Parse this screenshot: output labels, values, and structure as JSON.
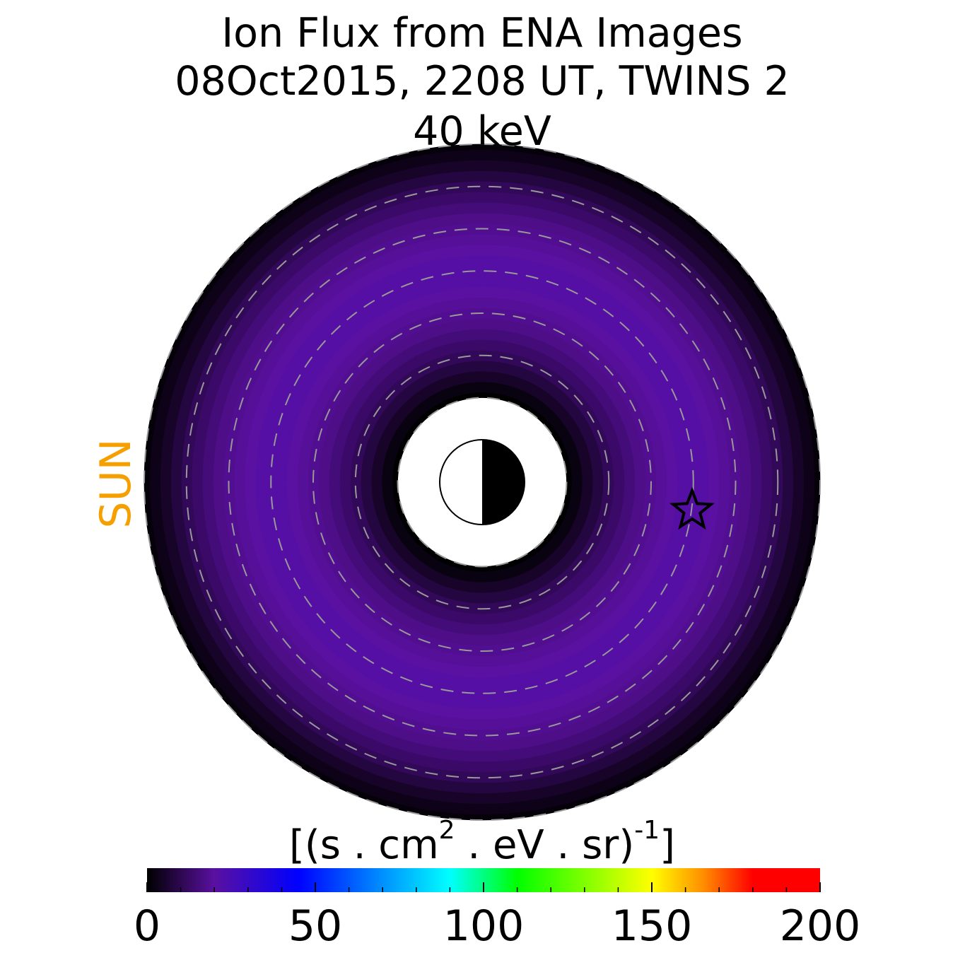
{
  "chart_data": {
    "type": "polar-map",
    "title": [
      "Ion Flux from  ENA Images",
      "08Oct2015, 2208 UT,  TWINS 2",
      "40 keV"
    ],
    "side_label": "SUN",
    "side_label_color": "#f5a000",
    "r": [
      2,
      2.25,
      2.5,
      2.75,
      3,
      3.25,
      3.5,
      3.75,
      4,
      4.25,
      4.5,
      4.75,
      5,
      5.25,
      5.5,
      5.75,
      6,
      6.25,
      6.5,
      6.75,
      7,
      7.25,
      7.5,
      7.75,
      8
    ],
    "values": [
      0,
      2,
      5,
      8,
      11,
      13,
      15,
      17,
      18,
      19,
      20,
      21,
      21,
      21,
      20,
      19,
      18,
      17,
      15,
      13,
      11,
      8,
      5,
      3,
      1
    ],
    "rlim": [
      0,
      8
    ],
    "rings": [
      2,
      3,
      4,
      5,
      6,
      7,
      8
    ],
    "marker": {
      "x": 4.97,
      "y": -0.67
    },
    "colorbar_label": [
      "[(s . cm",
      "2",
      " . eV . sr)",
      "-1",
      "]"
    ],
    "clim": [
      0,
      200
    ],
    "cticks": [
      0,
      50,
      100,
      150,
      200
    ],
    "cminor": [
      10,
      20,
      30,
      40,
      60,
      70,
      80,
      90,
      110,
      120,
      130,
      140,
      160,
      170,
      180,
      190
    ],
    "colormap": [
      {
        "value": 0,
        "color": "#000000"
      },
      {
        "value": 20,
        "color": "#5a10a0"
      },
      {
        "value": 45,
        "color": "#0000ff"
      },
      {
        "value": 70,
        "color": "#0090ff"
      },
      {
        "value": 90,
        "color": "#00ffff"
      },
      {
        "value": 110,
        "color": "#00ff00"
      },
      {
        "value": 150,
        "color": "#ffff00"
      },
      {
        "value": 165,
        "color": "#ff9000"
      },
      {
        "value": 180,
        "color": "#ff0000"
      },
      {
        "value": 200,
        "color": "#ff0000"
      }
    ]
  }
}
